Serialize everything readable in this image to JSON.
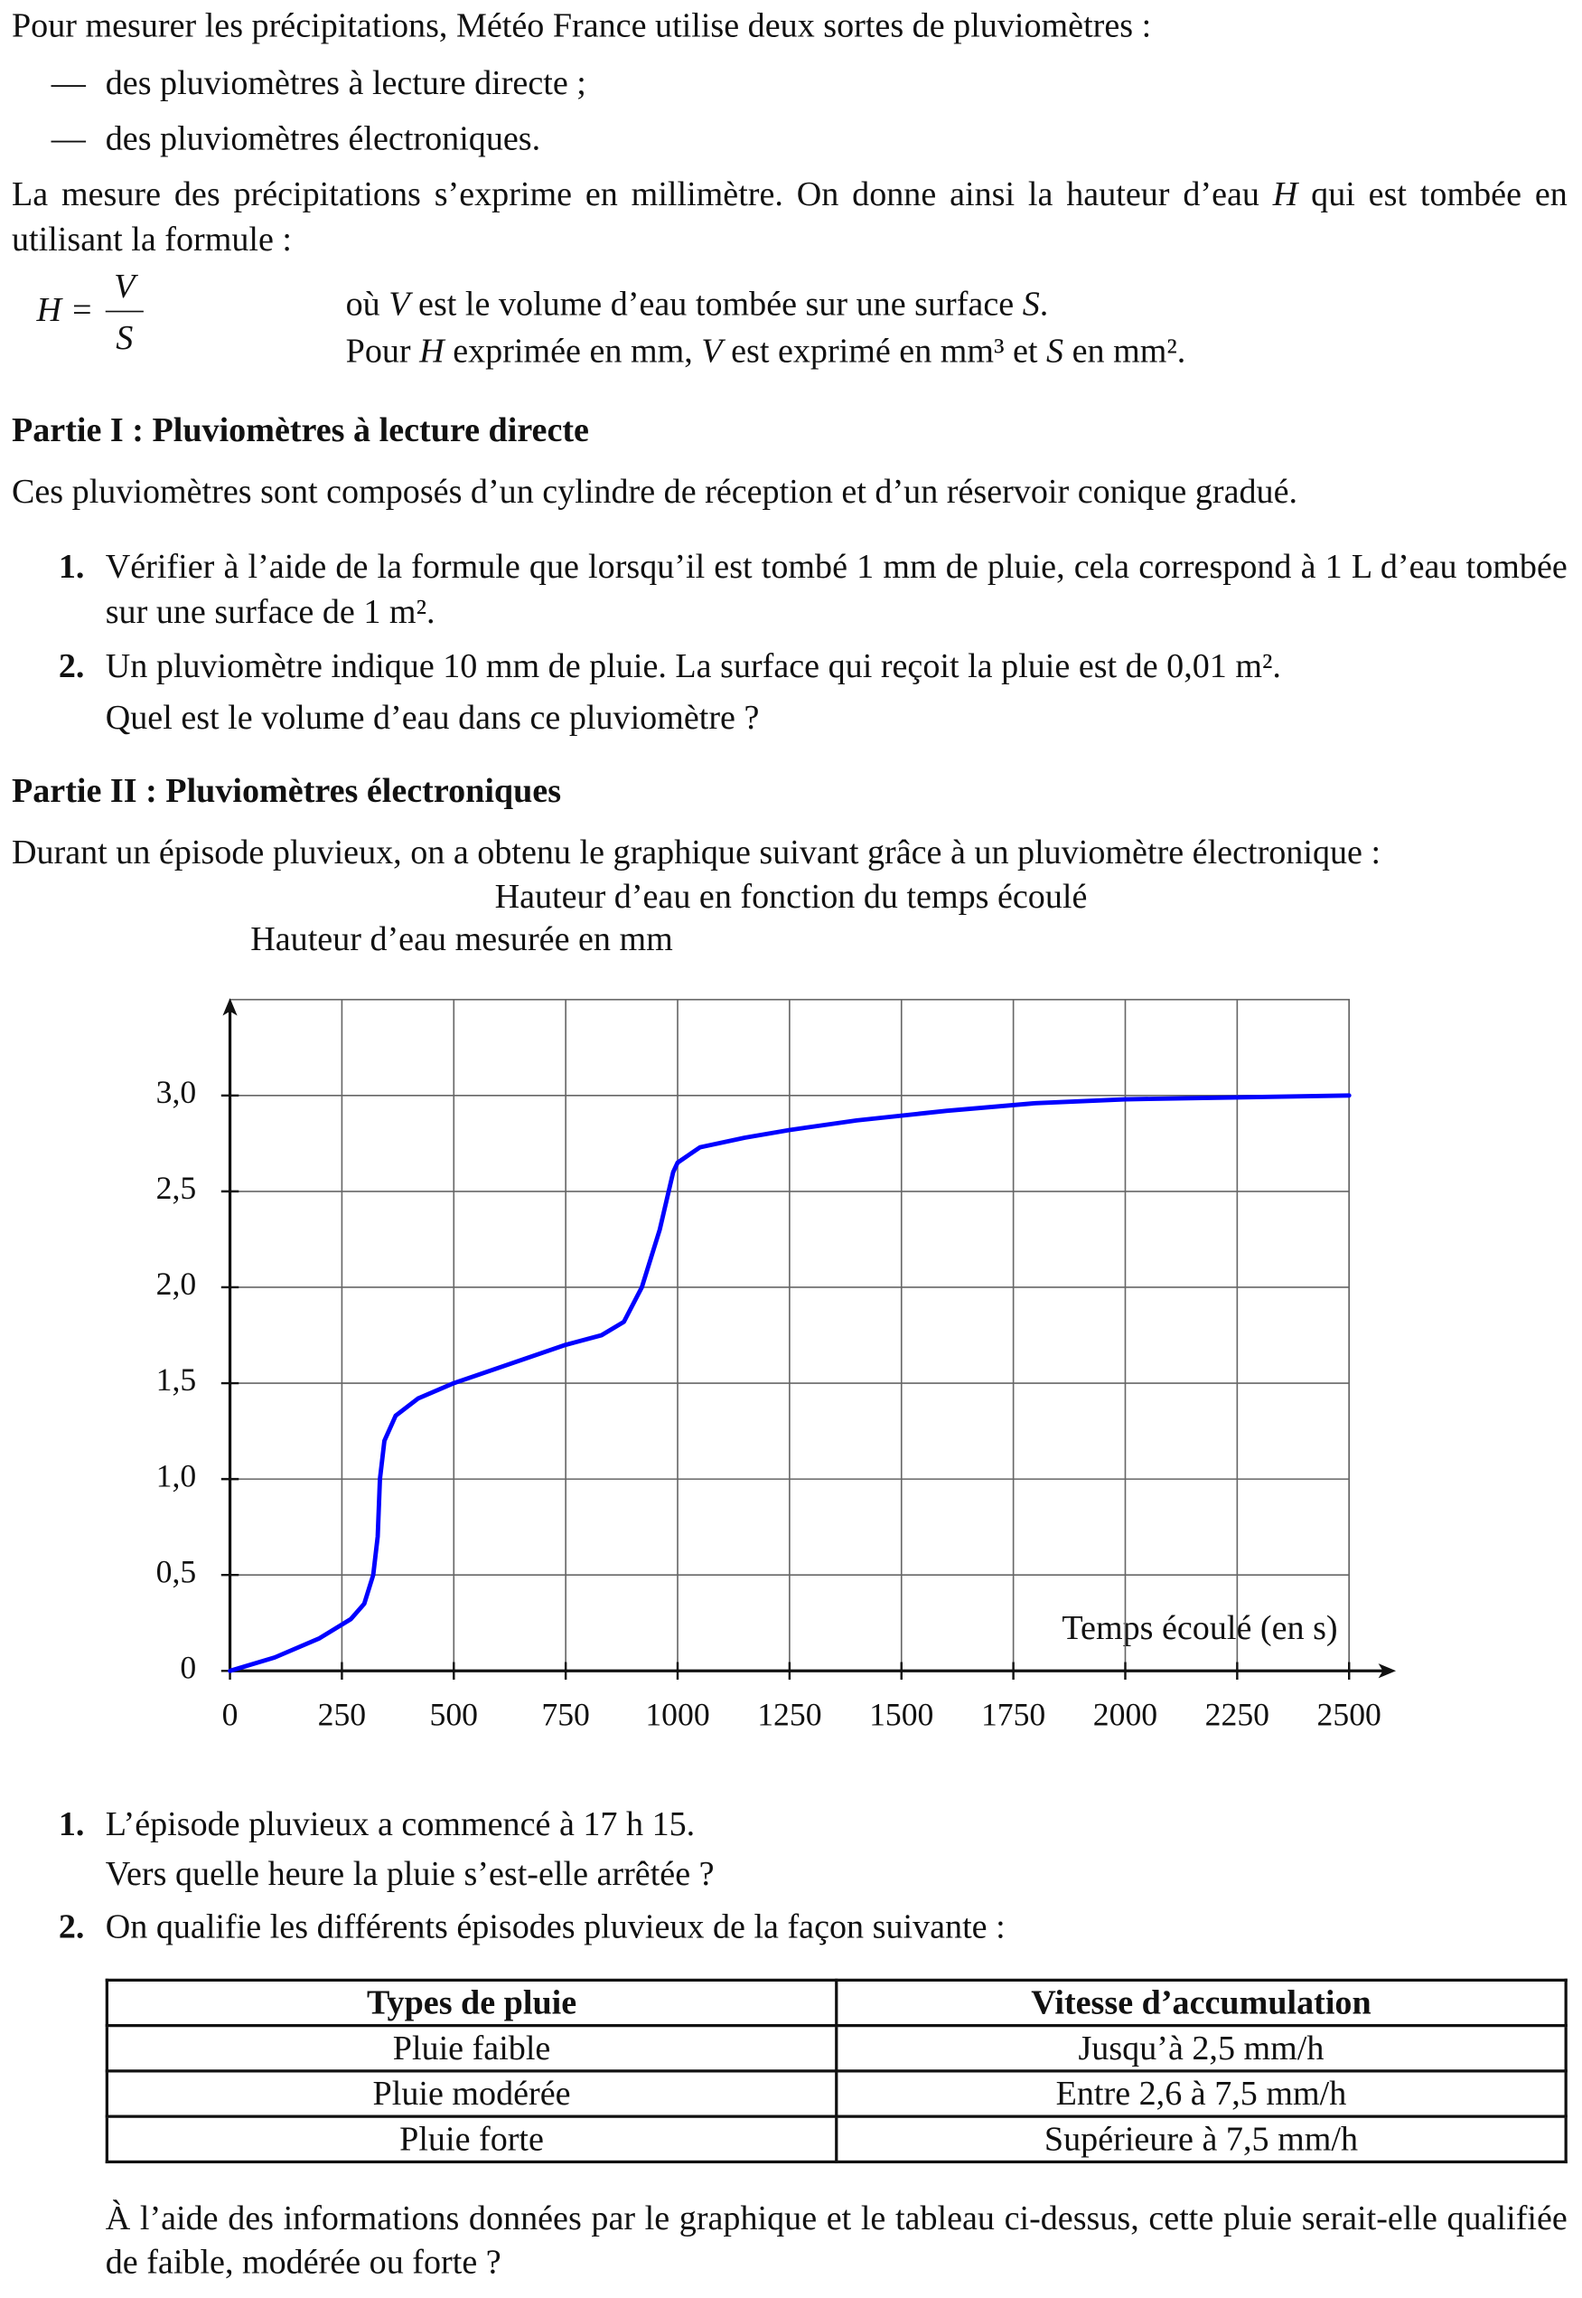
{
  "intro": {
    "text": "Pour mesurer les précipitations, Météo France utilise deux sortes de pluviomètres :",
    "bullet": "—",
    "items": [
      "des pluviomètres à lecture directe ;",
      "des pluviomètres électroniques."
    ]
  },
  "formula_intro": [
    "La mesure des précipitations s’exprime en millimètre. On donne ainsi la hauteur d’eau ",
    "H",
    " qui est tombée en utilisant la formule :"
  ],
  "formula": {
    "lhs": "H =",
    "numerator": "V",
    "denominator": "S"
  },
  "formula_notes": [
    [
      "où ",
      "V",
      " est le volume d’eau tombée sur une surface ",
      "S",
      "."
    ],
    [
      "Pour ",
      "H",
      " exprimée en mm, ",
      "V",
      " est exprimé en mm³ et ",
      "S",
      " en mm²."
    ]
  ],
  "part1": {
    "heading": "Partie I : Pluviomètres à lecture directe",
    "intro": "Ces pluviomètres sont composés d’un cylindre de réception et d’un réservoir conique gradué.",
    "questions": [
      {
        "number": "1.",
        "lines": [
          "Vérifier à l’aide de la formule que lorsqu’il est tombé 1 mm de pluie, cela correspond à 1 L d’eau tombée sur une surface de 1 m²."
        ]
      },
      {
        "number": "2.",
        "lines": [
          "Un pluviomètre indique 10 mm de pluie. La surface qui reçoit la pluie est de 0,01 m².",
          "Quel est le volume d’eau dans ce pluviomètre ?"
        ]
      }
    ]
  },
  "part2": {
    "heading": "Partie II : Pluviomètres électroniques",
    "intro": "Durant un épisode pluvieux, on a obtenu le graphique suivant grâce à un pluviomètre électronique :",
    "questions": [
      {
        "number": "1.",
        "lines": [
          "L’épisode pluvieux a commencé à 17 h 15.",
          "Vers quelle heure la pluie s’est-elle arrêtée ?"
        ]
      },
      {
        "number": "2.",
        "lines": [
          "On qualifie les différents épisodes pluvieux de la façon suivante :"
        ]
      }
    ],
    "table": {
      "header": [
        "Types de pluie",
        "Vitesse d’accumulation"
      ],
      "rows": [
        [
          "Pluie faible",
          "Jusqu’à 2,5 mm/h"
        ],
        [
          "Pluie modérée",
          "Entre 2,6 à 7,5 mm/h"
        ],
        [
          "Pluie forte",
          "Supérieure à 7,5 mm/h"
        ]
      ]
    },
    "conclusion": "À l’aide des informations données par le graphique et le tableau ci-dessus, cette pluie serait-elle qualifiée de faible, modérée ou forte ?"
  },
  "chart_data": {
    "type": "line",
    "title": "Hauteur d’eau en fonction du temps écoulé",
    "y_label": "Hauteur d’eau mesurée en mm",
    "x_label": "Temps écoulé (en s)",
    "x": [
      0,
      100,
      200,
      270,
      300,
      320,
      330,
      335,
      345,
      370,
      420,
      500,
      600,
      750,
      830,
      880,
      920,
      960,
      990,
      1000,
      1050,
      1150,
      1250,
      1400,
      1600,
      1800,
      2000,
      2250,
      2500
    ],
    "series": [
      {
        "color": "#0000ff",
        "values": [
          0,
          0.07,
          0.17,
          0.27,
          0.35,
          0.5,
          0.7,
          1.0,
          1.2,
          1.33,
          1.42,
          1.5,
          1.58,
          1.7,
          1.75,
          1.82,
          2.0,
          2.3,
          2.6,
          2.65,
          2.73,
          2.78,
          2.82,
          2.87,
          2.92,
          2.96,
          2.98,
          2.99,
          3.0
        ]
      }
    ],
    "xlim": [
      0,
      2500
    ],
    "ylim": [
      0,
      3.5
    ],
    "xticks": [
      0,
      250,
      500,
      750,
      1000,
      1250,
      1500,
      1750,
      2000,
      2250,
      2500
    ],
    "yticks": [
      0,
      {
        "value": 0.5,
        "label": "0,5"
      },
      {
        "value": 1,
        "label": "1,0"
      },
      {
        "value": 1.5,
        "label": "1,5"
      },
      {
        "value": 2,
        "label": "2,0"
      },
      {
        "value": 2.5,
        "label": "2,5"
      },
      {
        "value": 3,
        "label": "3,0"
      }
    ],
    "grid": true
  }
}
